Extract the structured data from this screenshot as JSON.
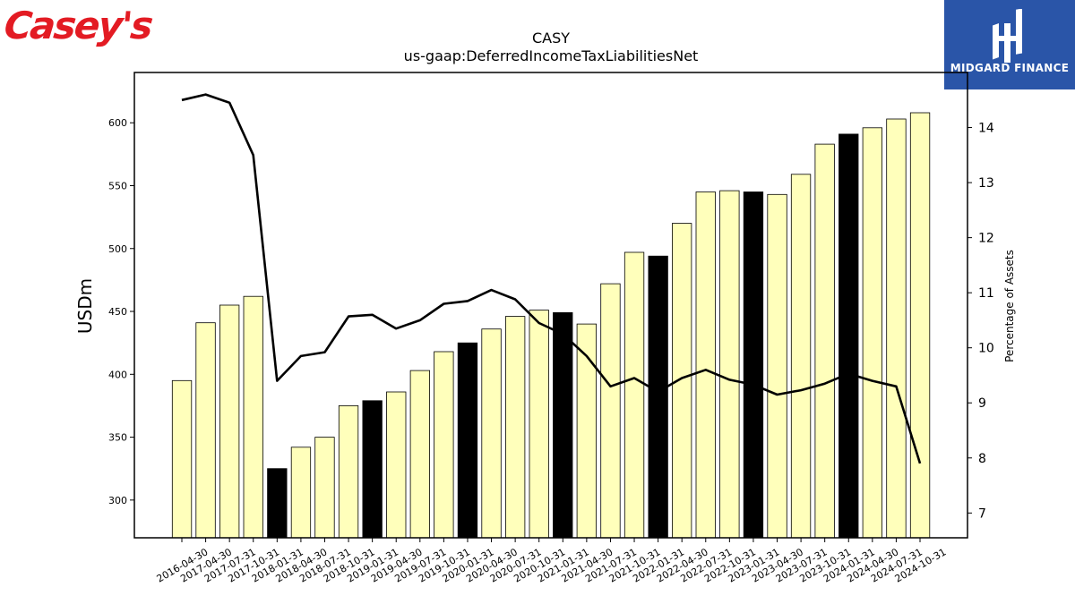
{
  "brand": {
    "left_logo_text": "Casey's",
    "right_logo_text": "MIDGARD FINANCE",
    "left_color": "#e31b23",
    "right_bg": "#2a55a8"
  },
  "chart_data": {
    "type": "bar",
    "title": "CASY",
    "subtitle": "us-gaap:DeferredIncomeTaxLiabilitiesNet",
    "ylabel": "USDm",
    "y2label": "Percentage of Assets",
    "ylim": [
      270,
      640
    ],
    "y2lim": [
      6.55,
      15.0
    ],
    "yticks": [
      300,
      350,
      400,
      450,
      500,
      550,
      600
    ],
    "y2ticks": [
      7,
      8,
      9,
      10,
      11,
      12,
      13,
      14
    ],
    "grid": false,
    "categories": [
      "2016-04-30",
      "2017-04-30",
      "2017-07-31",
      "2017-10-31",
      "2018-01-31",
      "2018-04-30",
      "2018-07-31",
      "2018-10-31",
      "2019-01-31",
      "2019-04-30",
      "2019-07-31",
      "2019-10-31",
      "2020-01-31",
      "2020-04-30",
      "2020-07-31",
      "2020-10-31",
      "2021-01-31",
      "2021-04-30",
      "2021-07-31",
      "2021-10-31",
      "2022-01-31",
      "2022-04-30",
      "2022-07-31",
      "2022-10-31",
      "2023-01-31",
      "2023-04-30",
      "2023-07-31",
      "2023-10-31",
      "2024-01-31",
      "2024-04-30",
      "2024-07-31",
      "2024-10-31"
    ],
    "series": [
      {
        "type": "bar",
        "values": [
          395,
          441,
          455,
          462,
          325,
          342,
          350,
          375,
          379,
          386,
          403,
          418,
          425,
          436,
          446,
          451,
          449,
          440,
          472,
          497,
          494,
          520,
          545,
          546,
          545,
          543,
          559,
          583,
          591,
          596,
          603,
          608
        ],
        "highlight": [
          false,
          false,
          false,
          false,
          true,
          false,
          false,
          false,
          true,
          false,
          false,
          false,
          true,
          false,
          false,
          false,
          true,
          false,
          false,
          false,
          true,
          false,
          false,
          false,
          true,
          false,
          false,
          false,
          true,
          false,
          false,
          false
        ],
        "color": "#ffffbb",
        "highlight_color": "#000000"
      },
      {
        "type": "line",
        "axis": "right",
        "values": [
          14.5,
          14.6,
          14.45,
          13.5,
          9.4,
          9.85,
          9.92,
          10.57,
          10.6,
          10.35,
          10.5,
          10.8,
          10.85,
          11.05,
          10.88,
          10.45,
          10.25,
          9.85,
          9.3,
          9.45,
          9.2,
          9.45,
          9.6,
          9.42,
          9.33,
          9.15,
          9.23,
          9.35,
          9.53,
          9.4,
          9.3,
          7.9
        ],
        "color": "#000000"
      }
    ]
  }
}
